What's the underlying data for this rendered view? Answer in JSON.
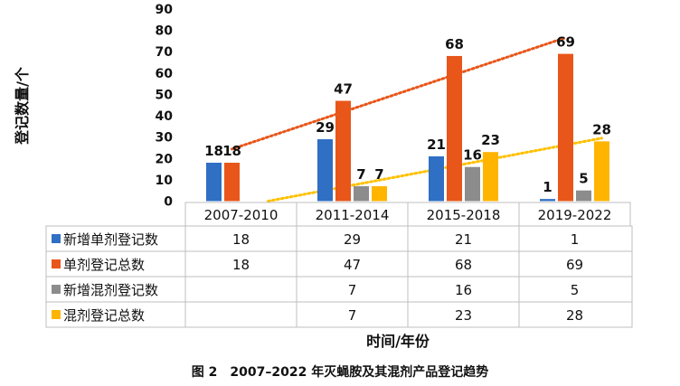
{
  "chart_data": {
    "type": "bar",
    "categories": [
      "2007-2010",
      "2011-2014",
      "2015-2018",
      "2019-2022"
    ],
    "series": [
      {
        "name": "新增单剂登记数",
        "values": [
          18,
          29,
          21,
          1
        ],
        "color": "#2F6FC4"
      },
      {
        "name": "单剂登记总数",
        "values": [
          18,
          47,
          68,
          69
        ],
        "color": "#E8561A"
      },
      {
        "name": "新增混剂登记数",
        "values": [
          null,
          7,
          16,
          5
        ],
        "color": "#8C8C8C"
      },
      {
        "name": "混剂登记总数",
        "values": [
          null,
          7,
          23,
          28
        ],
        "color": "#FFB400"
      }
    ],
    "trendlines": [
      {
        "series": "单剂登记总数",
        "style": "dotted",
        "color": "#E8561A"
      },
      {
        "series": "混剂登记总数",
        "style": "dotted",
        "color": "#FFC000"
      }
    ],
    "ylabel": "登记数量/个",
    "xlabel": "时间/年份",
    "ylim": [
      0,
      90
    ],
    "yticks": [
      0,
      10,
      20,
      30,
      40,
      50,
      60,
      70,
      80,
      90
    ],
    "data_table": true,
    "caption": "图 2　2007–2022 年灭蝇胺及其混剂产品登记趋势"
  }
}
